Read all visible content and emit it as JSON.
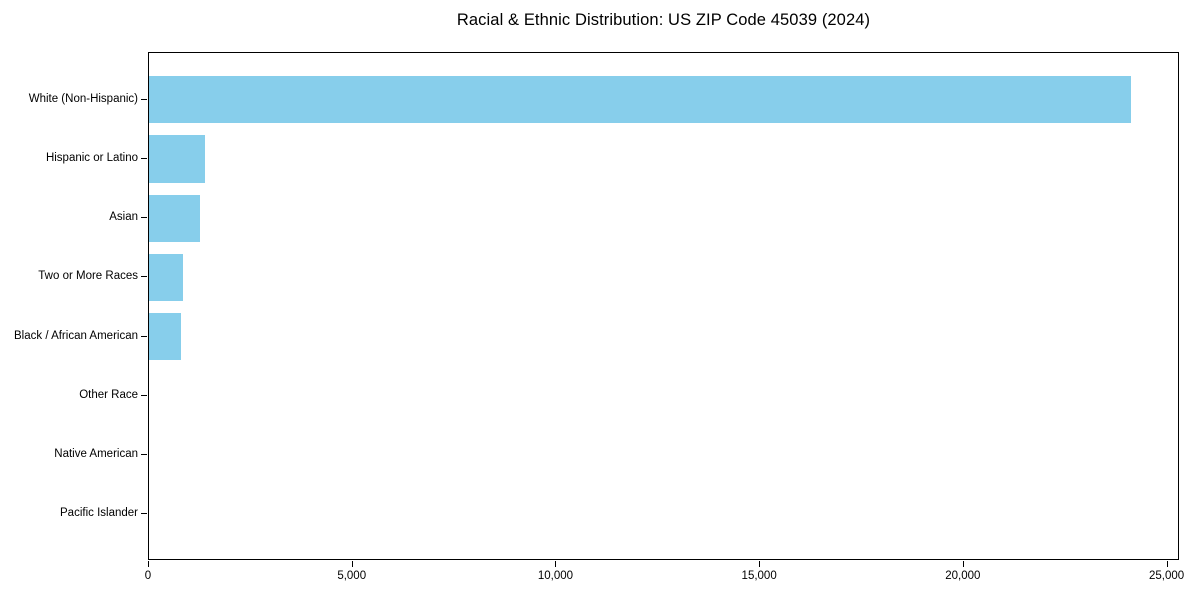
{
  "chart_data": {
    "type": "bar",
    "orientation": "horizontal",
    "title": "Racial & Ethnic Distribution: US ZIP Code 45039 (2024)",
    "categories": [
      "White (Non-Hispanic)",
      "Hispanic or Latino",
      "Asian",
      "Two or More Races",
      "Black / African American",
      "Other Race",
      "Native American",
      "Pacific Islander"
    ],
    "values": [
      24100,
      1380,
      1260,
      830,
      785,
      0,
      0,
      0
    ],
    "xlabel": "",
    "ylabel": "",
    "xlim": [
      0,
      25305
    ],
    "xticks": [
      0,
      5000,
      10000,
      15000,
      20000,
      25000
    ],
    "xtick_labels": [
      "0",
      "5,000",
      "10,000",
      "15,000",
      "20,000",
      "25,000"
    ],
    "bar_color": "#87CEEB",
    "axis_color": "#000000",
    "background_color": "#ffffff",
    "grid": false,
    "legend": null,
    "categories_top_to_bottom": true
  }
}
